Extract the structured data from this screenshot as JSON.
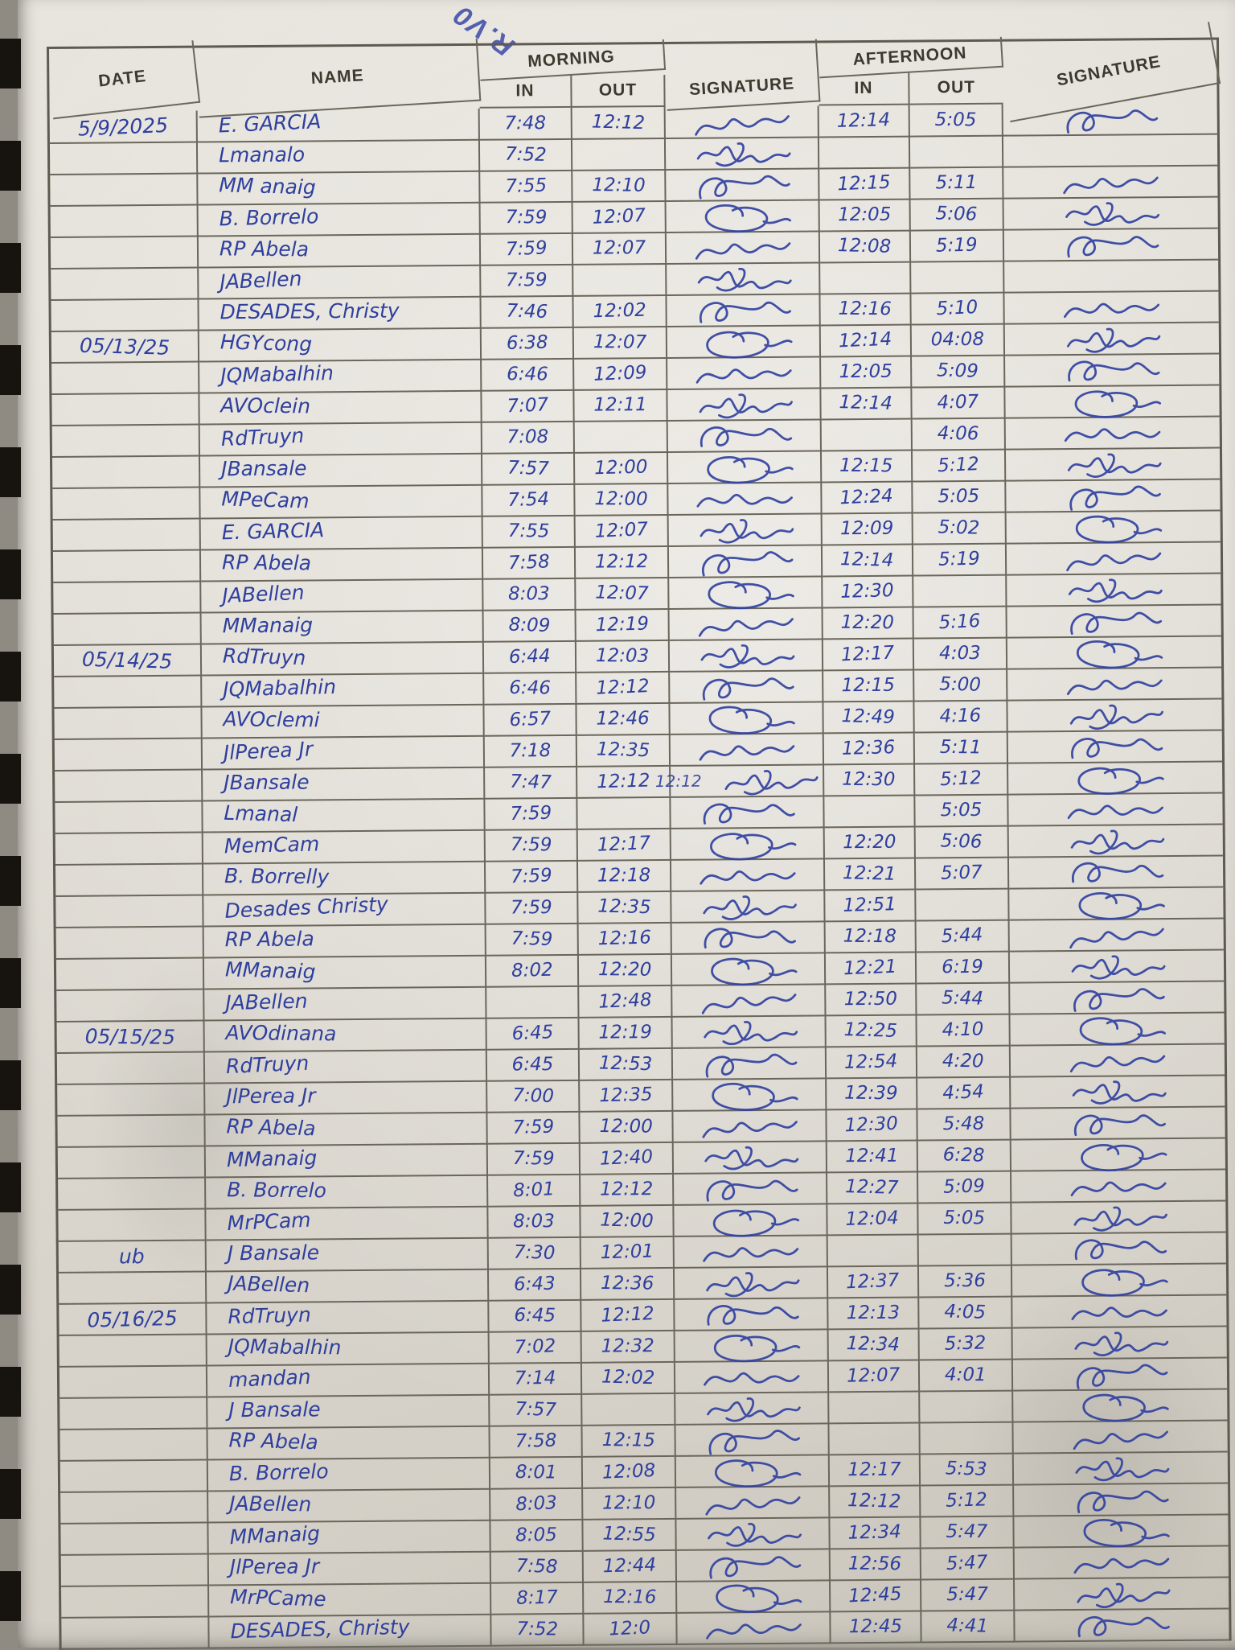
{
  "photo": {
    "top_annotation": "R.V0"
  },
  "colors": {
    "ink": "#2e3f9e",
    "grid_line": "#6a665b",
    "paper": "#ddd9d1",
    "binding": "#17140f"
  },
  "table": {
    "headers": {
      "date": "DATE",
      "name": "NAME",
      "morning": "MORNING",
      "afternoon": "AFTERNOON",
      "in": "IN",
      "out": "OUT",
      "signature": "SIGNATURE"
    },
    "rows": [
      {
        "date": "5/9/2025",
        "name": "E. GARCIA",
        "morning_in": "7:48",
        "morning_out": "12:12",
        "morning_sig": true,
        "afternoon_in": "12:14",
        "afternoon_out": "5:05",
        "afternoon_sig": true
      },
      {
        "name": "Lmanalo",
        "morning_in": "7:52",
        "morning_sig": true
      },
      {
        "name": "MM anaig",
        "morning_in": "7:55",
        "morning_out": "12:10",
        "morning_sig": true,
        "afternoon_in": "12:15",
        "afternoon_out": "5:11",
        "afternoon_sig": true
      },
      {
        "name": "B. Borrelo",
        "morning_in": "7:59",
        "morning_out": "12:07",
        "morning_sig": true,
        "afternoon_in": "12:05",
        "afternoon_out": "5:06",
        "afternoon_sig": true
      },
      {
        "name": "RP Abela",
        "morning_in": "7:59",
        "morning_out": "12:07",
        "morning_sig": true,
        "afternoon_in": "12:08",
        "afternoon_out": "5:19",
        "afternoon_sig": true
      },
      {
        "name": "JABellen",
        "morning_in": "7:59",
        "morning_sig": true
      },
      {
        "name": "DESADES, Christy",
        "morning_in": "7:46",
        "morning_out": "12:02",
        "morning_sig": true,
        "afternoon_in": "12:16",
        "afternoon_out": "5:10",
        "afternoon_sig": true
      },
      {
        "date": "05/13/25",
        "name": "HGYcong",
        "morning_in": "6:38",
        "morning_out": "12:07",
        "morning_sig": true,
        "afternoon_in": "12:14",
        "afternoon_out": "04:08",
        "afternoon_sig": true
      },
      {
        "name": "JQMabalhin",
        "morning_in": "6:46",
        "morning_out": "12:09",
        "morning_sig": true,
        "afternoon_in": "12:05",
        "afternoon_out": "5:09",
        "afternoon_sig": true
      },
      {
        "name": "AVOclein",
        "morning_in": "7:07",
        "morning_out": "12:11",
        "morning_sig": true,
        "afternoon_in": "12:14",
        "afternoon_out": "4:07",
        "afternoon_sig": true
      },
      {
        "name": "RdTruyn",
        "morning_in": "7:08",
        "morning_sig": true,
        "afternoon_out": "4:06",
        "afternoon_sig": true
      },
      {
        "name": "JBansale",
        "morning_in": "7:57",
        "morning_out": "12:00",
        "morning_sig": true,
        "afternoon_in": "12:15",
        "afternoon_out": "5:12",
        "afternoon_sig": true
      },
      {
        "name": "MPeCam",
        "morning_in": "7:54",
        "morning_out": "12:00",
        "morning_sig": true,
        "afternoon_in": "12:24",
        "afternoon_out": "5:05",
        "afternoon_sig": true
      },
      {
        "name": "E. GARCIA",
        "morning_in": "7:55",
        "morning_out": "12:07",
        "morning_sig": true,
        "afternoon_in": "12:09",
        "afternoon_out": "5:02",
        "afternoon_sig": true
      },
      {
        "name": "RP Abela",
        "morning_in": "7:58",
        "morning_out": "12:12",
        "morning_sig": true,
        "afternoon_in": "12:14",
        "afternoon_out": "5:19",
        "afternoon_sig": true
      },
      {
        "name": "JABellen",
        "morning_in": "8:03",
        "morning_out": "12:07",
        "morning_sig": true,
        "afternoon_in": "12:30",
        "afternoon_sig": true
      },
      {
        "name": "MManaig",
        "morning_in": "8:09",
        "morning_out": "12:19",
        "morning_sig": true,
        "afternoon_in": "12:20",
        "afternoon_out": "5:16",
        "afternoon_sig": true
      },
      {
        "date": "05/14/25",
        "name": "RdTruyn",
        "morning_in": "6:44",
        "morning_out": "12:03",
        "morning_sig": true,
        "afternoon_in": "12:17",
        "afternoon_out": "4:03",
        "afternoon_sig": true
      },
      {
        "name": "JQMabalhin",
        "morning_in": "6:46",
        "morning_out": "12:12",
        "morning_sig": true,
        "afternoon_in": "12:15",
        "afternoon_out": "5:00",
        "afternoon_sig": true
      },
      {
        "name": "AVOclemi",
        "morning_in": "6:57",
        "morning_out": "12:46",
        "morning_sig": true,
        "afternoon_in": "12:49",
        "afternoon_out": "4:16",
        "afternoon_sig": true
      },
      {
        "name": "JlPerea Jr",
        "morning_in": "7:18",
        "morning_out": "12:35",
        "morning_sig": true,
        "afternoon_in": "12:36",
        "afternoon_out": "5:11",
        "afternoon_sig": true
      },
      {
        "name": "JBansale",
        "morning_in": "7:47",
        "morning_out": "12:12",
        "morning_sig": true,
        "sig_note": "12:12",
        "afternoon_in": "12:30",
        "afternoon_out": "5:12",
        "afternoon_sig": true
      },
      {
        "name": "Lmanal",
        "morning_in": "7:59",
        "morning_sig": true,
        "afternoon_out": "5:05",
        "afternoon_sig": true
      },
      {
        "name": "MemCam",
        "morning_in": "7:59",
        "morning_out": "12:17",
        "morning_sig": true,
        "afternoon_in": "12:20",
        "afternoon_out": "5:06",
        "afternoon_sig": true
      },
      {
        "name": "B. Borrelly",
        "morning_in": "7:59",
        "morning_out": "12:18",
        "morning_sig": true,
        "afternoon_in": "12:21",
        "afternoon_out": "5:07",
        "afternoon_sig": true
      },
      {
        "name": "Desades Christy",
        "morning_in": "7:59",
        "morning_out": "12:35",
        "morning_sig": true,
        "afternoon_in": "12:51",
        "afternoon_sig": true
      },
      {
        "name": "RP Abela",
        "morning_in": "7:59",
        "morning_out": "12:16",
        "morning_sig": true,
        "afternoon_in": "12:18",
        "afternoon_out": "5:44",
        "afternoon_sig": true
      },
      {
        "name": "MManaig",
        "morning_in": "8:02",
        "morning_out": "12:20",
        "morning_sig": true,
        "afternoon_in": "12:21",
        "afternoon_out": "6:19",
        "afternoon_sig": true
      },
      {
        "name": "JABellen",
        "morning_out": "12:48",
        "morning_sig": true,
        "afternoon_in": "12:50",
        "afternoon_out": "5:44",
        "afternoon_sig": true
      },
      {
        "date": "05/15/25",
        "name": "AVOdinana",
        "morning_in": "6:45",
        "morning_out": "12:19",
        "morning_sig": true,
        "afternoon_in": "12:25",
        "afternoon_out": "4:10",
        "afternoon_sig": true
      },
      {
        "name": "RdTruyn",
        "morning_in": "6:45",
        "morning_out": "12:53",
        "morning_sig": true,
        "afternoon_in": "12:54",
        "afternoon_out": "4:20",
        "afternoon_sig": true
      },
      {
        "name": "JlPerea Jr",
        "morning_in": "7:00",
        "morning_out": "12:35",
        "morning_sig": true,
        "afternoon_in": "12:39",
        "afternoon_out": "4:54",
        "afternoon_sig": true
      },
      {
        "name": "RP Abela",
        "morning_in": "7:59",
        "morning_out": "12:00",
        "morning_sig": true,
        "afternoon_in": "12:30",
        "afternoon_out": "5:48",
        "afternoon_sig": true
      },
      {
        "name": "MManaig",
        "morning_in": "7:59",
        "morning_out": "12:40",
        "morning_sig": true,
        "afternoon_in": "12:41",
        "afternoon_out": "6:28",
        "afternoon_sig": true
      },
      {
        "name": "B. Borrelo",
        "morning_in": "8:01",
        "morning_out": "12:12",
        "morning_sig": true,
        "afternoon_in": "12:27",
        "afternoon_out": "5:09",
        "afternoon_sig": true
      },
      {
        "name": "MrPCam",
        "morning_in": "8:03",
        "morning_out": "12:00",
        "morning_sig": true,
        "afternoon_in": "12:04",
        "afternoon_out": "5:05",
        "afternoon_sig": true
      },
      {
        "date": "ub",
        "name": "J Bansale",
        "morning_in": "7:30",
        "morning_out": "12:01",
        "morning_sig": true,
        "afternoon_sig": true
      },
      {
        "name": "JABellen",
        "morning_in": "6:43",
        "morning_out": "12:36",
        "morning_sig": true,
        "afternoon_in": "12:37",
        "afternoon_out": "5:36",
        "afternoon_sig": true
      },
      {
        "date": "05/16/25",
        "name": "RdTruyn",
        "morning_in": "6:45",
        "morning_out": "12:12",
        "morning_sig": true,
        "afternoon_in": "12:13",
        "afternoon_out": "4:05",
        "afternoon_sig": true
      },
      {
        "name": "JQMabalhin",
        "morning_in": "7:02",
        "morning_out": "12:32",
        "morning_sig": true,
        "afternoon_in": "12:34",
        "afternoon_out": "5:32",
        "afternoon_sig": true
      },
      {
        "name": "mandan",
        "morning_in": "7:14",
        "morning_out": "12:02",
        "morning_sig": true,
        "afternoon_in": "12:07",
        "afternoon_out": "4:01",
        "afternoon_sig": true
      },
      {
        "name": "J Bansale",
        "morning_in": "7:57",
        "morning_sig": true,
        "afternoon_sig": true
      },
      {
        "name": "RP Abela",
        "morning_in": "7:58",
        "morning_out": "12:15",
        "morning_sig": true,
        "afternoon_sig": true
      },
      {
        "name": "B. Borrelo",
        "morning_in": "8:01",
        "morning_out": "12:08",
        "morning_sig": true,
        "afternoon_in": "12:17",
        "afternoon_out": "5:53",
        "afternoon_sig": true
      },
      {
        "name": "JABellen",
        "morning_in": "8:03",
        "morning_out": "12:10",
        "morning_sig": true,
        "afternoon_in": "12:12",
        "afternoon_out": "5:12",
        "afternoon_sig": true
      },
      {
        "name": "MManaig",
        "morning_in": "8:05",
        "morning_out": "12:55",
        "morning_sig": true,
        "afternoon_in": "12:34",
        "afternoon_out": "5:47",
        "afternoon_sig": true
      },
      {
        "name": "JlPerea Jr",
        "morning_in": "7:58",
        "morning_out": "12:44",
        "morning_sig": true,
        "afternoon_in": "12:56",
        "afternoon_out": "5:47",
        "afternoon_sig": true
      },
      {
        "name": "MrPCame",
        "morning_in": "8:17",
        "morning_out": "12:16",
        "morning_sig": true,
        "afternoon_in": "12:45",
        "afternoon_out": "5:47",
        "afternoon_sig": true
      },
      {
        "name": "DESADES, Christy",
        "morning_in": "7:52",
        "morning_out": "12:0",
        "morning_sig": true,
        "afternoon_in": "12:45",
        "afternoon_out": "4:41",
        "afternoon_sig": true
      }
    ]
  }
}
